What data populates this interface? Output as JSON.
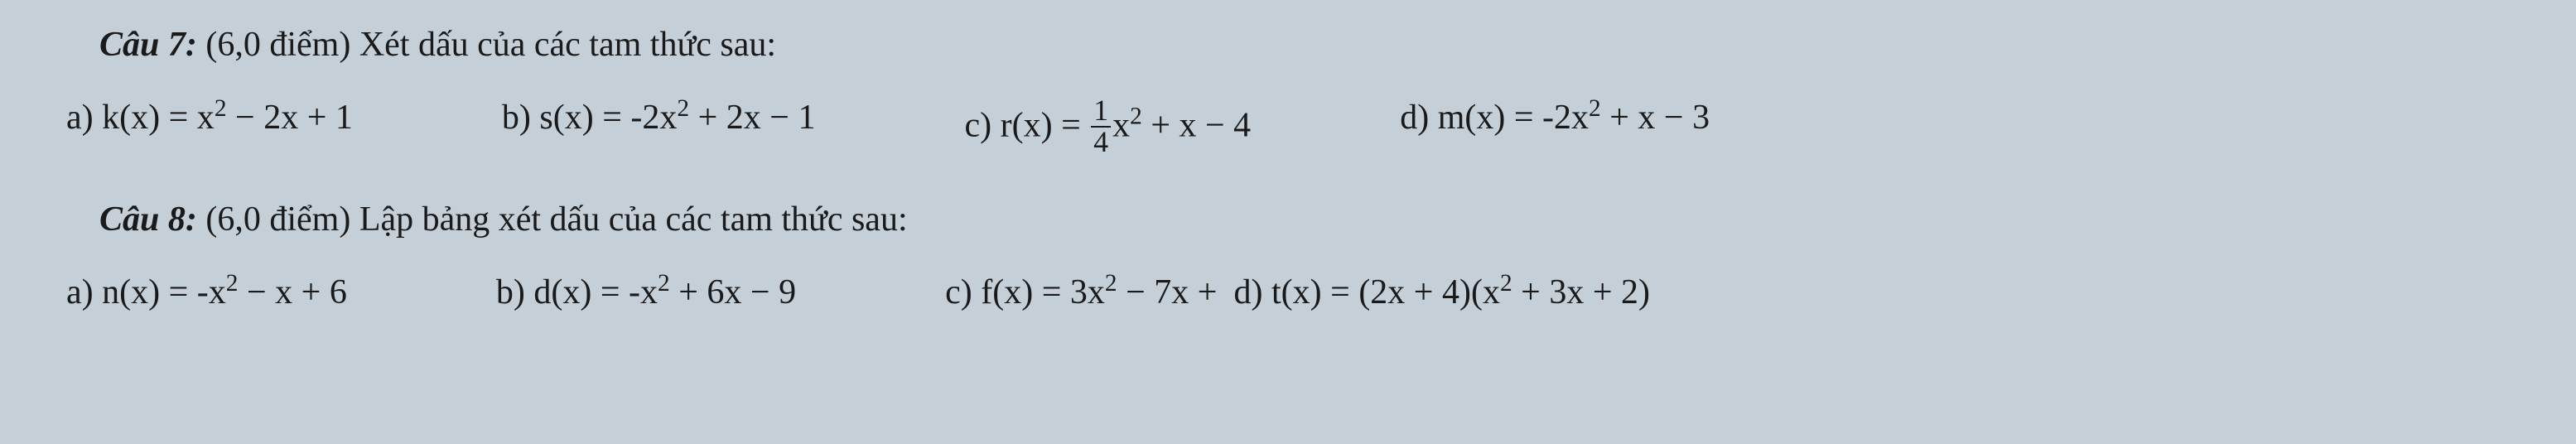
{
  "q7": {
    "label": "Câu 7:",
    "points": "(6,0 điểm)",
    "prompt": "Xét dấu của các tam thức sau:",
    "a": {
      "label": "a)",
      "fn": "k(x) = x",
      "exp1": "2",
      "rest": " − 2x + 1"
    },
    "b": {
      "label": "b)",
      "fn": "s(x) = -2x",
      "exp1": "2",
      "rest": " + 2x − 1"
    },
    "c": {
      "label": "c)",
      "pre": "r(x) = ",
      "num": "1",
      "den": "4",
      "mid": "x",
      "exp1": "2",
      "rest": " + x − 4"
    },
    "d": {
      "label": "d)",
      "fn": "m(x) = -2x",
      "exp1": "2",
      "rest": " + x − 3"
    }
  },
  "q8": {
    "label": "Câu 8:",
    "points": "(6,0 điểm)",
    "prompt": "Lập bảng xét dấu của các tam thức sau:",
    "a": {
      "label": "a)",
      "fn": "n(x) = -x",
      "exp1": "2",
      "rest": " − x + 6"
    },
    "b": {
      "label": "b)",
      "fn": "d(x) = -x",
      "exp1": "2",
      "rest": " + 6x − 9"
    },
    "c": {
      "label": "c)",
      "fn": "f(x) = 3x",
      "exp1": "2",
      "rest": " − 7x + "
    },
    "d": {
      "label": "d)",
      "pre": "t(x) = (2x + 4)(x",
      "exp1": "2",
      "rest": " + 3x + 2)"
    }
  }
}
